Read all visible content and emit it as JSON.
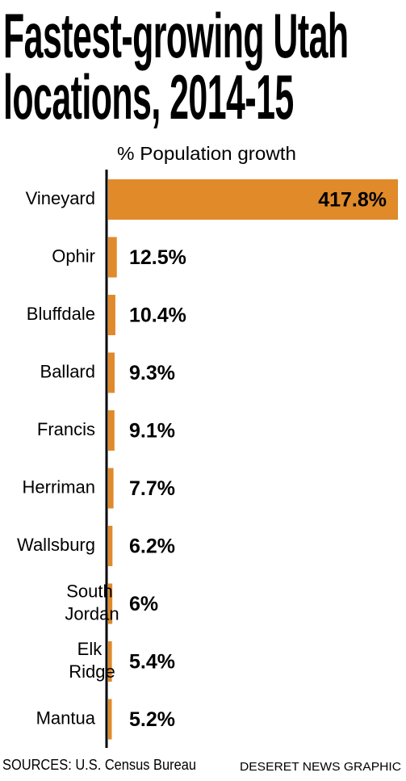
{
  "chart_data": {
    "type": "barh",
    "title": "Fastest-growing Utah locations, 2014-15",
    "subtitle": "% Population growth",
    "categories": [
      "Vineyard",
      "Ophir",
      "Bluffdale",
      "Ballard",
      "Francis",
      "Herriman",
      "Wallsburg",
      "South Jordan",
      "Elk Ridge",
      "Mantua"
    ],
    "values": [
      417.8,
      12.5,
      10.4,
      9.3,
      9.1,
      7.7,
      6.2,
      6,
      5.4,
      5.2
    ],
    "value_labels": [
      "417.8%",
      "12.5%",
      "10.4%",
      "9.3%",
      "9.1%",
      "7.7%",
      "6.2%",
      "6%",
      "5.4%",
      "5.2%"
    ],
    "color": "#e08a2a",
    "source": "SOURCES: U.S. Census Bureau",
    "credit": "DESERET NEWS GRAPHIC"
  }
}
